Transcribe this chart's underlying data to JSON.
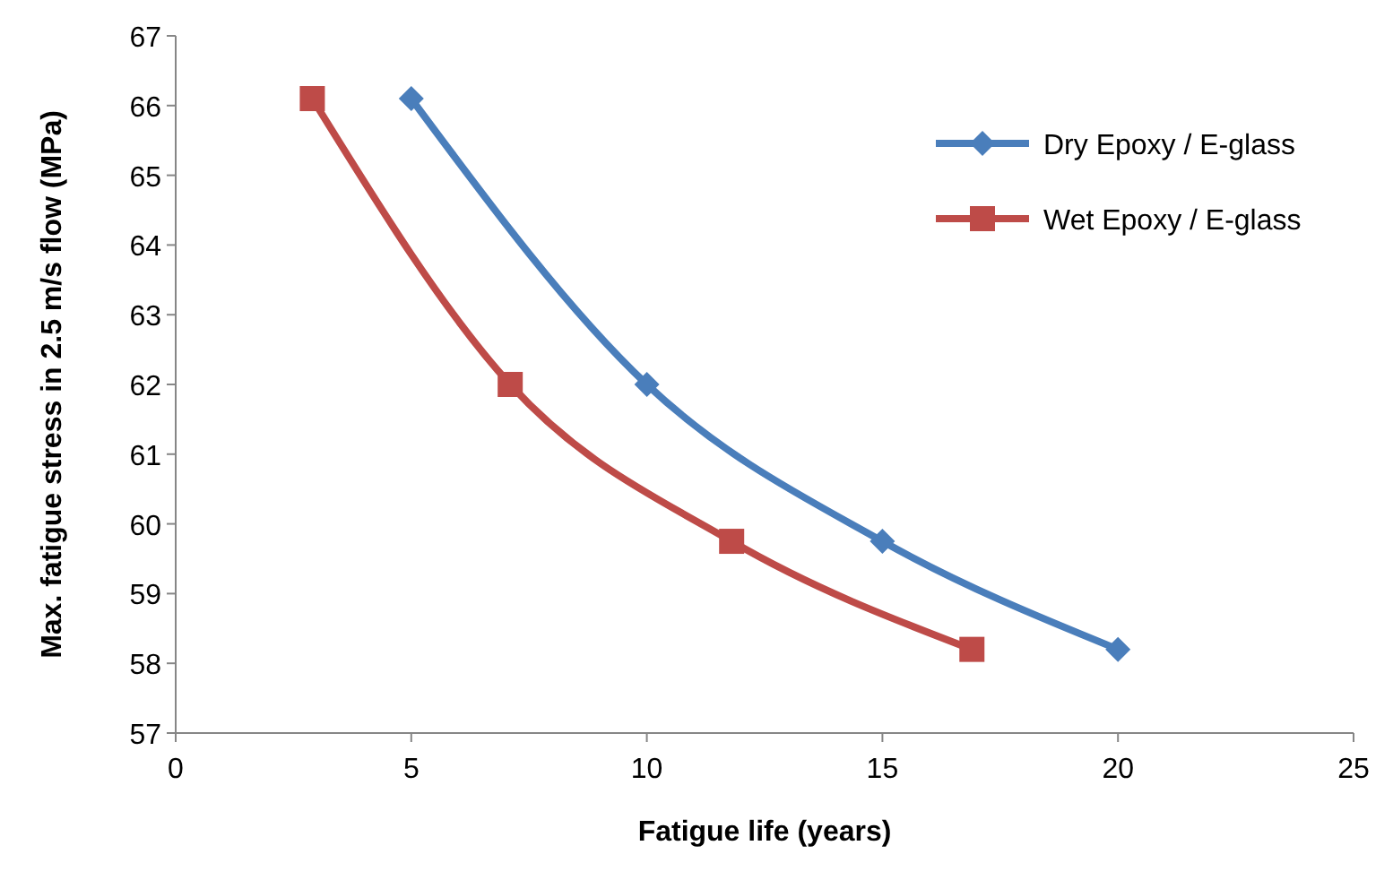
{
  "chart_data": {
    "type": "line",
    "xlabel": "Fatigue life (years)",
    "ylabel": "Max. fatigue stress in 2.5 m/s flow (MPa)",
    "xlim": [
      0,
      25
    ],
    "xticks": [
      0,
      5,
      10,
      15,
      20,
      25
    ],
    "ylim": [
      57,
      67
    ],
    "yticks": [
      57,
      58,
      59,
      60,
      61,
      62,
      63,
      64,
      65,
      66,
      67
    ],
    "grid": false,
    "legend": "top right",
    "series": [
      {
        "name": "Dry Epoxy / E-glass",
        "color": "#4a7ebb",
        "marker": "diamond",
        "x": [
          5,
          10,
          15,
          20
        ],
        "values": [
          66.1,
          62,
          59.75,
          58.2
        ]
      },
      {
        "name": "Wet Epoxy / E-glass",
        "color": "#be4b48",
        "marker": "square",
        "x": [
          2.9,
          7.1,
          11.8,
          16.9
        ],
        "values": [
          66.1,
          62,
          59.75,
          58.2
        ]
      }
    ]
  }
}
